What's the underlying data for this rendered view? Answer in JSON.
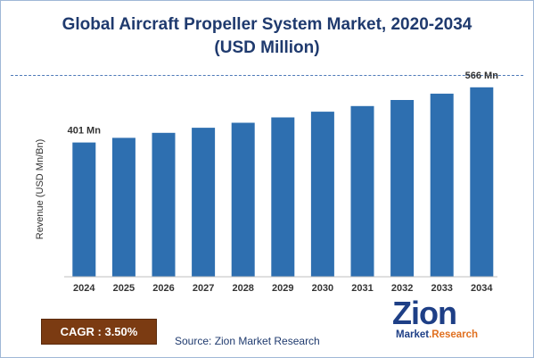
{
  "chart_data": {
    "type": "bar",
    "title": "Global Aircraft Propeller System Market, 2020-2034",
    "subtitle": "(USD Million)",
    "ylabel": "Revenue (USD Mn/Bn)",
    "xlabel": "",
    "categories": [
      "2024",
      "2025",
      "2026",
      "2027",
      "2028",
      "2029",
      "2030",
      "2031",
      "2032",
      "2033",
      "2034"
    ],
    "values": [
      401,
      415,
      430,
      445,
      460,
      476,
      493,
      510,
      528,
      547,
      566
    ],
    "data_labels": {
      "2024": "401 Mn",
      "2034": "566 Mn"
    },
    "ylim": [
      0,
      600
    ],
    "grid": false,
    "bar_color": "#2e6fb0"
  },
  "cagr_label": "CAGR : 3.50%",
  "source_text": "Source: Zion Market Research",
  "logo": {
    "name": "Zion",
    "tagline": "Market.Research"
  }
}
